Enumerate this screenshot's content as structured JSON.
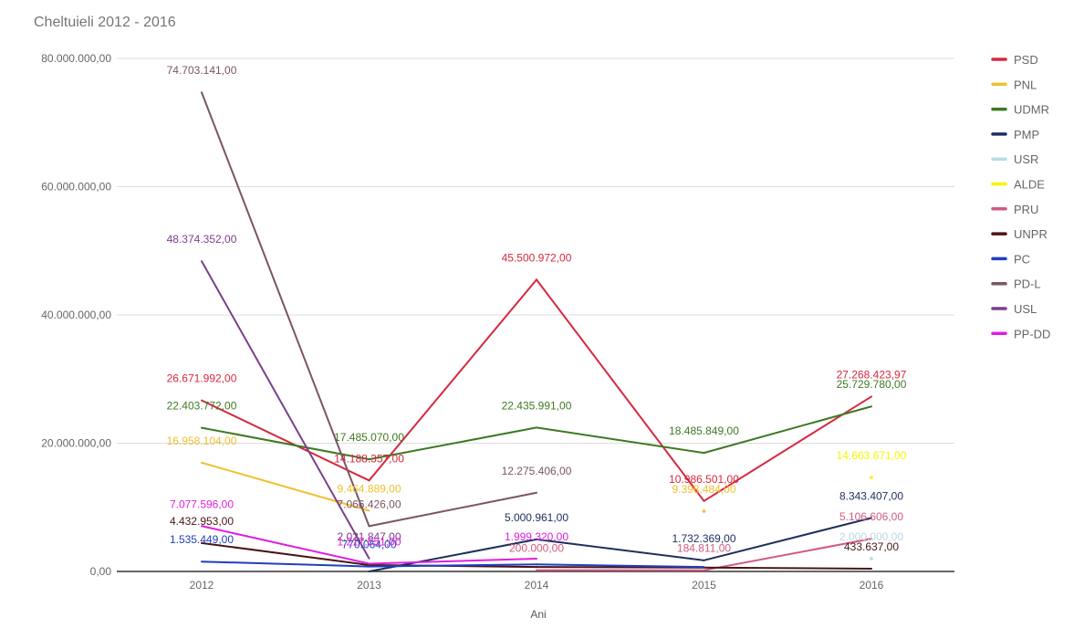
{
  "chart_data": {
    "type": "line",
    "title": "Cheltuieli 2012 - 2016",
    "xlabel": "Ani",
    "ylabel": "",
    "categories": [
      "2012",
      "2013",
      "2014",
      "2015",
      "2016"
    ],
    "ylim": [
      0,
      80000000
    ],
    "y_tick_values": [
      0,
      20000000,
      40000000,
      60000000,
      80000000
    ],
    "y_ticks": [
      "0,00",
      "20.000.000,00",
      "40.000.000,00",
      "60.000.000,00",
      "80.000.000,00"
    ],
    "grid": true,
    "legend_position": "right",
    "series": [
      {
        "name": "PSD",
        "color": "#d6283f",
        "values": [
          26671992,
          14188357,
          45500972,
          10986501,
          27268423.97
        ],
        "labels": [
          "26.671.992,00",
          "14.188.357,00",
          "45.500.972,00",
          "10.986.501,00",
          "27.268.423,97"
        ]
      },
      {
        "name": "PNL",
        "color": "#f0c030",
        "values": [
          16958104,
          9464889,
          null,
          9398484,
          null
        ],
        "labels": [
          "16.958.104,00",
          "9.464.889,00",
          null,
          "9.398.484,00",
          null
        ]
      },
      {
        "name": "UDMR",
        "color": "#3d7a22",
        "values": [
          22403772,
          17485070,
          22435991,
          18485849,
          25729780
        ],
        "labels": [
          "22.403.772,00",
          "17.485.070,00",
          "22.435.991,00",
          "18.485.849,00",
          "25.729.780,00"
        ]
      },
      {
        "name": "PMP",
        "color": "#1e2f5c",
        "values": [
          null,
          0,
          5000961,
          1732369,
          8343407
        ],
        "labels": [
          null,
          null,
          "5.000.961,00",
          "1.732.369,00",
          "8.343.407,00"
        ]
      },
      {
        "name": "USR",
        "color": "#bcd9e6",
        "values": [
          null,
          null,
          null,
          null,
          2000000
        ],
        "labels": [
          null,
          null,
          null,
          null,
          "2.000.000,00"
        ]
      },
      {
        "name": "ALDE",
        "color": "#f5f500",
        "values": [
          null,
          null,
          null,
          null,
          14663671
        ],
        "labels": [
          null,
          null,
          null,
          null,
          "14.663.671,00"
        ]
      },
      {
        "name": "PRU",
        "color": "#d05a80",
        "values": [
          null,
          null,
          200000,
          184811,
          5106606
        ],
        "labels": [
          null,
          null,
          "200.000,00",
          "184.811,00",
          "5.106.606,00"
        ]
      },
      {
        "name": "UNPR",
        "color": "#4a1515",
        "values": [
          4432953,
          1000000,
          700000,
          600000,
          433637
        ],
        "labels": [
          "4.432.953,00",
          null,
          null,
          null,
          "433.637,00"
        ]
      },
      {
        "name": "PC",
        "color": "#1f3fc0",
        "values": [
          1535449,
          770064,
          1100000,
          700000,
          null
        ],
        "labels": [
          "1.535.449,00",
          "770.064,00",
          null,
          null,
          null
        ]
      },
      {
        "name": "PD-L",
        "color": "#7a5566",
        "values": [
          74703141,
          7066426,
          12275406,
          null,
          null
        ],
        "labels": [
          "74.703.141,00",
          "7.066.426,00",
          "12.275.406,00",
          null,
          null
        ]
      },
      {
        "name": "USL",
        "color": "#7b3f8c",
        "values": [
          48374352,
          2021847,
          null,
          null,
          null
        ],
        "labels": [
          "48.374.352,00",
          "2.021.847,00",
          null,
          null,
          null
        ]
      },
      {
        "name": "PP-DD",
        "color": "#e01ee0",
        "values": [
          7077596,
          1217551,
          1999320,
          null,
          null
        ],
        "labels": [
          "7.077.596,00",
          "1.217.551,00",
          "1.999.320,00",
          null,
          null
        ]
      }
    ]
  }
}
